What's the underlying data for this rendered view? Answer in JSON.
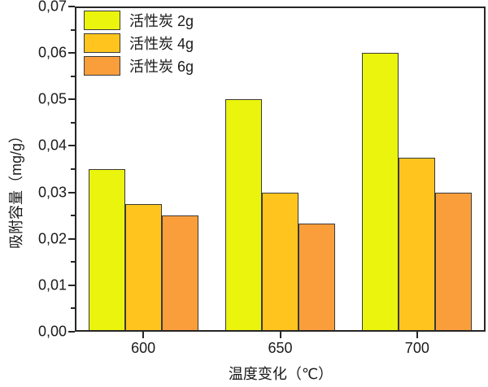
{
  "figure": {
    "background": "#ffffff",
    "axis_color": "#262626",
    "text_color": "#1a1a1a",
    "bar_border_color": "#3a3a3a"
  },
  "chart_data": {
    "type": "bar",
    "title": "",
    "categories": [
      "600",
      "650",
      "700"
    ],
    "series": [
      {
        "id": "2g",
        "name": "活性炭 2g",
        "color": "#EBF40C",
        "values": [
          0.035,
          0.05,
          0.06
        ]
      },
      {
        "id": "4g",
        "name": "活性炭 4g",
        "color": "#FFC51E",
        "values": [
          0.0275,
          0.03,
          0.0375
        ]
      },
      {
        "id": "6g",
        "name": "活性炭 6g",
        "color": "#FA9E3C",
        "values": [
          0.025,
          0.0233,
          0.03
        ]
      }
    ],
    "xlabel": "温度变化（℃）",
    "ylabel": "吸附容量（mg/g）",
    "ylim": [
      0,
      0.07
    ],
    "y_major_step": 0.01,
    "y_minor_step": 0.005,
    "y_tick_labels": [
      "0,00",
      "0,01",
      "0,02",
      "0,03",
      "0,04",
      "0,05",
      "0,06",
      "0,07"
    ],
    "decimal_separator": ",",
    "grid": false,
    "legend_position": "top-left"
  }
}
